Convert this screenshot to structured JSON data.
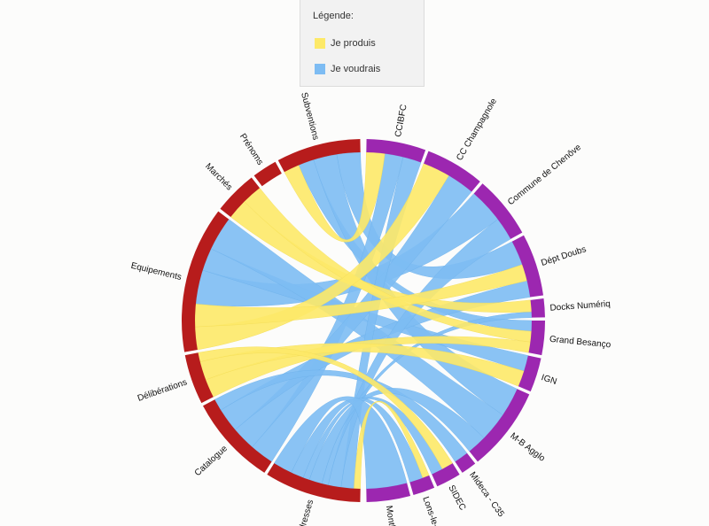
{
  "legend": {
    "title": "Légende:",
    "items": [
      {
        "label": "Je produis",
        "color": "#fde968"
      },
      {
        "label": "Je voudrais",
        "color": "#7dbcf3"
      }
    ]
  },
  "chart_data": {
    "type": "chord",
    "colors": {
      "producers": "#b71c1c",
      "consumers": "#9c27b0",
      "produis": "#fde968",
      "voudrais": "#7dbcf3"
    },
    "groups": [
      {
        "name": "CCIBFC",
        "side": "consumers",
        "span": [
          1,
          20
        ]
      },
      {
        "name": "CC Champagnole",
        "side": "consumers",
        "span": [
          21,
          40
        ]
      },
      {
        "name": "Commune de Chenôve",
        "side": "consumers",
        "span": [
          41,
          61
        ]
      },
      {
        "name": "Dépt Doubs",
        "side": "consumers",
        "span": [
          62,
          82
        ]
      },
      {
        "name": "Docks Numériq",
        "side": "consumers",
        "span": [
          83,
          89
        ]
      },
      {
        "name": "Grand Besanço",
        "side": "consumers",
        "span": [
          90,
          101
        ]
      },
      {
        "name": "IGN",
        "side": "consumers",
        "span": [
          102,
          113
        ]
      },
      {
        "name": "M-B Agglo",
        "side": "consumers",
        "span": [
          114,
          141
        ]
      },
      {
        "name": "Mideca - C35",
        "side": "consumers",
        "span": [
          142,
          147
        ]
      },
      {
        "name": "SIDEC",
        "side": "consumers",
        "span": [
          148,
          156
        ]
      },
      {
        "name": "Lons-le-Sau",
        "side": "consumers",
        "span": [
          157,
          164
        ]
      },
      {
        "name": "Montbé",
        "side": "consumers",
        "span": [
          165,
          179
        ]
      },
      {
        "name": "Adresses",
        "side": "producers",
        "span": [
          181,
          212
        ]
      },
      {
        "name": "Catalogue",
        "side": "producers",
        "span": [
          213,
          242
        ]
      },
      {
        "name": "Délibérations",
        "side": "producers",
        "span": [
          243,
          259
        ]
      },
      {
        "name": "Equipements",
        "side": "producers",
        "span": [
          260,
          307
        ]
      },
      {
        "name": "Marchés",
        "side": "producers",
        "span": [
          308,
          322
        ]
      },
      {
        "name": "Prénoms",
        "side": "producers",
        "span": [
          323,
          331
        ]
      },
      {
        "name": "Subventions",
        "side": "producers",
        "span": [
          332,
          359
        ]
      }
    ],
    "links": [
      {
        "source": "Subventions",
        "target": "CCIBFC",
        "type": "produis",
        "value": 2
      },
      {
        "source": "Subventions",
        "target": "Grand Besanço",
        "type": "voudrais",
        "value": 2
      },
      {
        "source": "Subventions",
        "target": "M-B Agglo",
        "type": "voudrais",
        "value": 3
      },
      {
        "source": "Subventions",
        "target": "Dépt Doubs",
        "type": "voudrais",
        "value": 3
      },
      {
        "source": "Marchés",
        "target": "Docks Numériq",
        "type": "produis",
        "value": 2
      },
      {
        "source": "Marchés",
        "target": "Grand Besanço",
        "type": "produis",
        "value": 2
      },
      {
        "source": "Equipements",
        "target": "CC Champagnole",
        "type": "produis",
        "value": 2
      },
      {
        "source": "Equipements",
        "target": "Dépt Doubs",
        "type": "produis",
        "value": 2
      },
      {
        "source": "Equipements",
        "target": "Commune de Chenôve",
        "type": "voudrais",
        "value": 3
      },
      {
        "source": "Equipements",
        "target": "IGN",
        "type": "voudrais",
        "value": 2
      },
      {
        "source": "Equipements",
        "target": "M-B Agglo",
        "type": "voudrais",
        "value": 3
      },
      {
        "source": "Délibérations",
        "target": "Grand Besanço",
        "type": "produis",
        "value": 2
      },
      {
        "source": "Délibérations",
        "target": "IGN",
        "type": "produis",
        "value": 2
      },
      {
        "source": "Délibérations",
        "target": "SIDEC",
        "type": "produis",
        "value": 1
      },
      {
        "source": "Catalogue",
        "target": "CCIBFC",
        "type": "voudrais",
        "value": 2
      },
      {
        "source": "Catalogue",
        "target": "CC Champagnole",
        "type": "voudrais",
        "value": 2
      },
      {
        "source": "Catalogue",
        "target": "Dépt Doubs",
        "type": "voudrais",
        "value": 2
      },
      {
        "source": "Catalogue",
        "target": "Mideca - C35",
        "type": "voudrais",
        "value": 1
      },
      {
        "source": "Adresses",
        "target": "Lons-le-Sau",
        "type": "produis",
        "value": 1
      },
      {
        "source": "Adresses",
        "target": "CCIBFC",
        "type": "voudrais",
        "value": 2
      },
      {
        "source": "Adresses",
        "target": "Commune de Chenôve",
        "type": "voudrais",
        "value": 2
      },
      {
        "source": "Adresses",
        "target": "Docks Numériq",
        "type": "voudrais",
        "value": 1
      },
      {
        "source": "Adresses",
        "target": "M-B Agglo",
        "type": "voudrais",
        "value": 2
      },
      {
        "source": "Adresses",
        "target": "SIDEC",
        "type": "voudrais",
        "value": 1
      },
      {
        "source": "Adresses",
        "target": "Lons-le-Sau",
        "type": "voudrais",
        "value": 2
      },
      {
        "source": "Adresses",
        "target": "Montbé",
        "type": "voudrais",
        "value": 3
      }
    ]
  }
}
